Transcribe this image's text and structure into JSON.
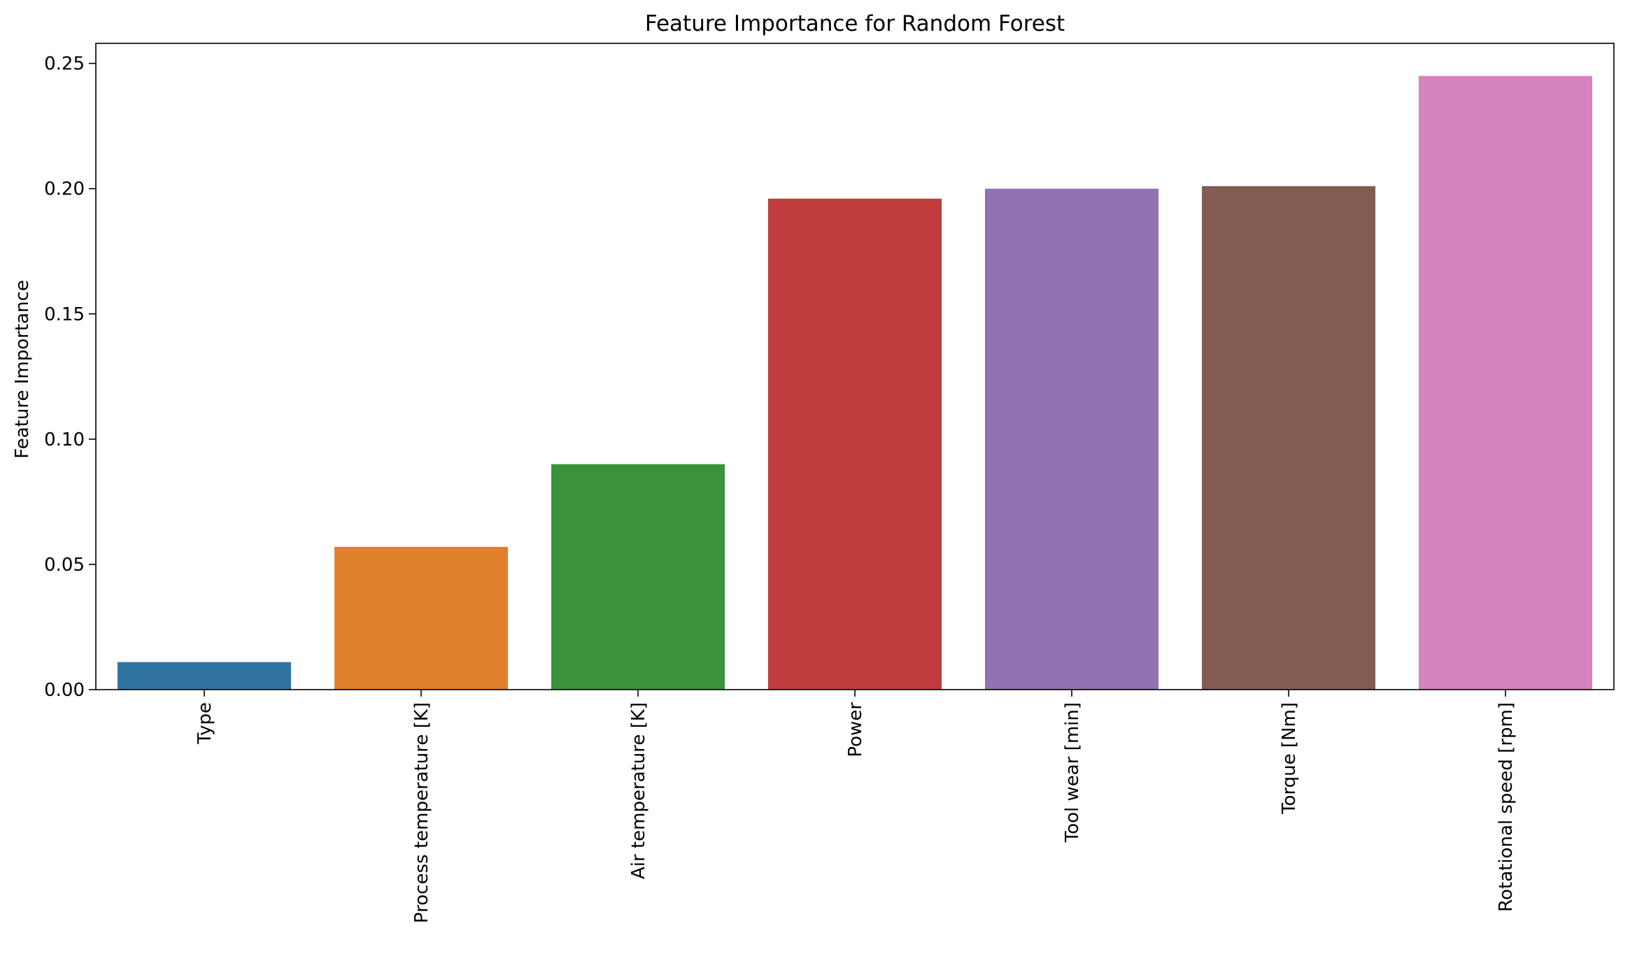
{
  "chart_data": {
    "type": "bar",
    "title": "Feature Importance for Random Forest",
    "xlabel": "",
    "ylabel": "Feature Importance",
    "categories": [
      "Type",
      "Process temperature [K]",
      "Air temperature [K]",
      "Power",
      "Tool wear [min]",
      "Torque [Nm]",
      "Rotational speed [rpm]"
    ],
    "values": [
      0.011,
      0.057,
      0.09,
      0.196,
      0.2,
      0.201,
      0.245
    ],
    "colors": [
      "#3274a1",
      "#e1812c",
      "#3a923a",
      "#c03d3e",
      "#9372b2",
      "#845b53",
      "#d684bd"
    ],
    "ylim": [
      0,
      0.258
    ],
    "yticks": [
      0.0,
      0.05,
      0.1,
      0.15,
      0.2,
      0.25
    ],
    "ytick_labels": [
      "0.00",
      "0.05",
      "0.10",
      "0.15",
      "0.20",
      "0.25"
    ],
    "grid": false,
    "legend": "none"
  }
}
